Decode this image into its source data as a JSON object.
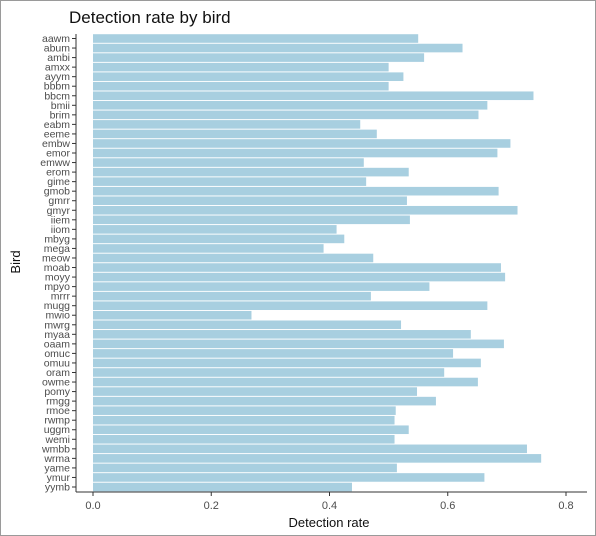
{
  "chart_data": {
    "type": "bar",
    "orientation": "horizontal",
    "title": "Detection rate by bird",
    "xlabel": "Detection rate",
    "ylabel": "Bird",
    "xlim": [
      0,
      0.8
    ],
    "xticks": [
      "0.0",
      "0.2",
      "0.4",
      "0.6",
      "0.8"
    ],
    "bar_color": "#a8cfe0",
    "grid": false,
    "categories": [
      "aawm",
      "abum",
      "ambi",
      "amxx",
      "ayym",
      "bbbm",
      "bbcm",
      "bmii",
      "brim",
      "eabm",
      "eeme",
      "embw",
      "emor",
      "emww",
      "erom",
      "gime",
      "gmob",
      "gmrr",
      "gmyr",
      "iiem",
      "iiom",
      "mbyg",
      "mega",
      "meow",
      "moab",
      "moyy",
      "mpyo",
      "mrrr",
      "mugg",
      "mwio",
      "mwrg",
      "myaa",
      "oaam",
      "omuc",
      "omuu",
      "oram",
      "owme",
      "pomy",
      "rmgg",
      "rmoe",
      "rwmp",
      "uggm",
      "wemi",
      "wmbb",
      "wrma",
      "yame",
      "ymur",
      "yymb"
    ],
    "values": [
      0.55,
      0.625,
      0.56,
      0.5,
      0.525,
      0.5,
      0.745,
      0.667,
      0.652,
      0.452,
      0.48,
      0.706,
      0.684,
      0.458,
      0.534,
      0.462,
      0.686,
      0.531,
      0.718,
      0.536,
      0.412,
      0.425,
      0.39,
      0.474,
      0.69,
      0.697,
      0.569,
      0.47,
      0.667,
      0.268,
      0.521,
      0.639,
      0.695,
      0.609,
      0.656,
      0.594,
      0.651,
      0.548,
      0.58,
      0.512,
      0.51,
      0.534,
      0.51,
      0.734,
      0.758,
      0.514,
      0.662,
      0.438
    ]
  }
}
